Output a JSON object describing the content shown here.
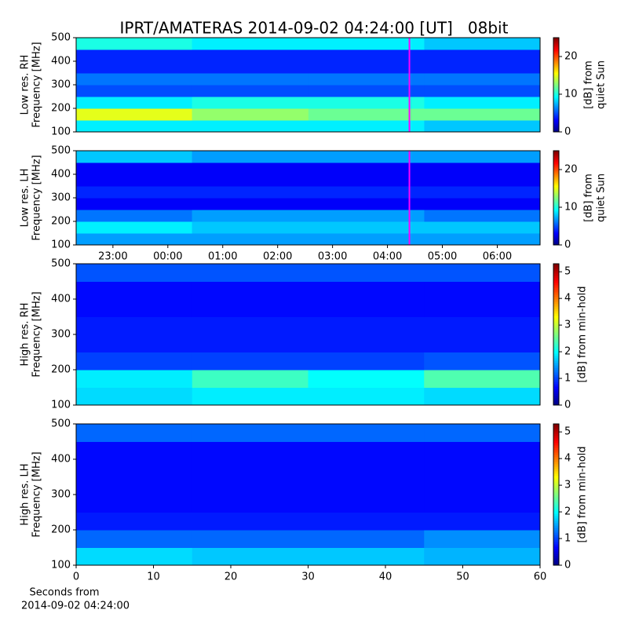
{
  "chart_data": [
    {
      "type": "heatmap",
      "title": "IPRT/AMATERAS 2014-09-02 04:24:00 [UT]   08bit",
      "ylabel": [
        "Low res. RH",
        "Frequency [MHz]"
      ],
      "colorbar_label": [
        "[dB] from",
        "quiet Sun"
      ],
      "colormap": "jet",
      "xlim": [
        22.33,
        30.78
      ],
      "ylim": [
        100,
        500
      ],
      "yticks": [
        100,
        200,
        300,
        400,
        500
      ],
      "zlim": [
        0,
        25
      ],
      "zticks": [
        0,
        10,
        20
      ],
      "marker_x": 28.4,
      "marker_color": "#ff00ff",
      "x_bins": [
        22.33,
        24.44,
        26.56,
        28.67,
        30.78
      ],
      "y_bins": [
        100,
        150,
        200,
        250,
        300,
        350,
        400,
        450,
        500
      ],
      "z": [
        [
          9,
          9,
          9,
          8
        ],
        [
          15,
          13,
          12,
          12
        ],
        [
          9,
          10,
          10,
          9
        ],
        [
          5,
          5,
          5,
          5
        ],
        [
          6,
          6,
          6,
          6
        ],
        [
          4,
          4,
          4,
          4
        ],
        [
          4,
          4,
          4,
          4
        ],
        [
          10,
          9,
          9,
          8
        ]
      ]
    },
    {
      "type": "heatmap",
      "ylabel": [
        "Low res. LH",
        "Frequency [MHz]"
      ],
      "colorbar_label": [
        "[dB] from",
        "quiet Sun"
      ],
      "colormap": "jet",
      "xlim": [
        22.33,
        30.78
      ],
      "ylim": [
        100,
        500
      ],
      "yticks": [
        100,
        200,
        300,
        400,
        500
      ],
      "xticks": [
        {
          "value": 23,
          "label": "23:00"
        },
        {
          "value": 24,
          "label": "00:00"
        },
        {
          "value": 25,
          "label": "01:00"
        },
        {
          "value": 26,
          "label": "02:00"
        },
        {
          "value": 27,
          "label": "03:00"
        },
        {
          "value": 28,
          "label": "04:00"
        },
        {
          "value": 29,
          "label": "05:00"
        },
        {
          "value": 30,
          "label": "06:00"
        }
      ],
      "zlim": [
        0,
        25
      ],
      "zticks": [
        0,
        10,
        20
      ],
      "marker_x": 28.4,
      "marker_color": "#ff00ff",
      "x_bins": [
        22.33,
        24.44,
        26.56,
        28.67,
        30.78
      ],
      "y_bins": [
        100,
        150,
        200,
        250,
        300,
        350,
        400,
        450,
        500
      ],
      "z": [
        [
          7,
          7,
          7,
          7
        ],
        [
          9,
          8,
          8,
          8
        ],
        [
          6,
          7,
          7,
          6
        ],
        [
          3,
          3,
          3,
          3
        ],
        [
          4,
          4,
          4,
          4
        ],
        [
          3,
          3,
          3,
          3
        ],
        [
          3,
          3,
          3,
          3
        ],
        [
          8,
          7,
          7,
          7
        ]
      ]
    },
    {
      "type": "heatmap",
      "ylabel": [
        "High res. RH",
        "Frequency [MHz]"
      ],
      "colorbar_label": [
        "[dB] from min-hold"
      ],
      "colormap": "jet",
      "xlim": [
        0,
        60
      ],
      "ylim": [
        100,
        500
      ],
      "yticks": [
        100,
        200,
        300,
        400,
        500
      ],
      "zlim": [
        0,
        5.3
      ],
      "zticks": [
        0,
        1,
        2,
        3,
        4,
        5
      ],
      "x_bins": [
        0,
        15,
        30,
        45,
        60
      ],
      "y_bins": [
        100,
        150,
        200,
        250,
        300,
        350,
        400,
        450,
        500
      ],
      "z": [
        [
          1.8,
          1.9,
          1.9,
          1.8
        ],
        [
          1.9,
          2.3,
          2.0,
          2.4
        ],
        [
          1.0,
          1.0,
          1.0,
          1.1
        ],
        [
          0.8,
          0.8,
          0.8,
          0.8
        ],
        [
          0.8,
          0.8,
          0.8,
          0.8
        ],
        [
          0.7,
          0.7,
          0.7,
          0.7
        ],
        [
          0.7,
          0.7,
          0.7,
          0.7
        ],
        [
          1.1,
          1.1,
          1.1,
          1.1
        ]
      ]
    },
    {
      "type": "heatmap",
      "ylabel": [
        "High res. LH",
        "Frequency [MHz]"
      ],
      "colorbar_label": [
        "[dB] from min-hold"
      ],
      "xlabel": [
        "Seconds from",
        "2014-09-02 04:24:00"
      ],
      "colormap": "jet",
      "xlim": [
        0,
        60
      ],
      "ylim": [
        100,
        500
      ],
      "yticks": [
        100,
        200,
        300,
        400,
        500
      ],
      "xticks": [
        0,
        10,
        20,
        30,
        40,
        50,
        60
      ],
      "zlim": [
        0,
        5.3
      ],
      "zticks": [
        0,
        1,
        2,
        3,
        4,
        5
      ],
      "x_bins": [
        0,
        15,
        30,
        45,
        60
      ],
      "y_bins": [
        100,
        150,
        200,
        250,
        300,
        350,
        400,
        450,
        500
      ],
      "z": [
        [
          1.8,
          1.7,
          1.7,
          1.6
        ],
        [
          1.2,
          1.2,
          1.2,
          1.4
        ],
        [
          0.8,
          0.8,
          0.8,
          0.8
        ],
        [
          0.7,
          0.7,
          0.7,
          0.7
        ],
        [
          0.7,
          0.7,
          0.7,
          0.7
        ],
        [
          0.7,
          0.7,
          0.7,
          0.7
        ],
        [
          0.7,
          0.7,
          0.7,
          0.7
        ],
        [
          1.2,
          1.2,
          1.2,
          1.2
        ]
      ]
    }
  ]
}
